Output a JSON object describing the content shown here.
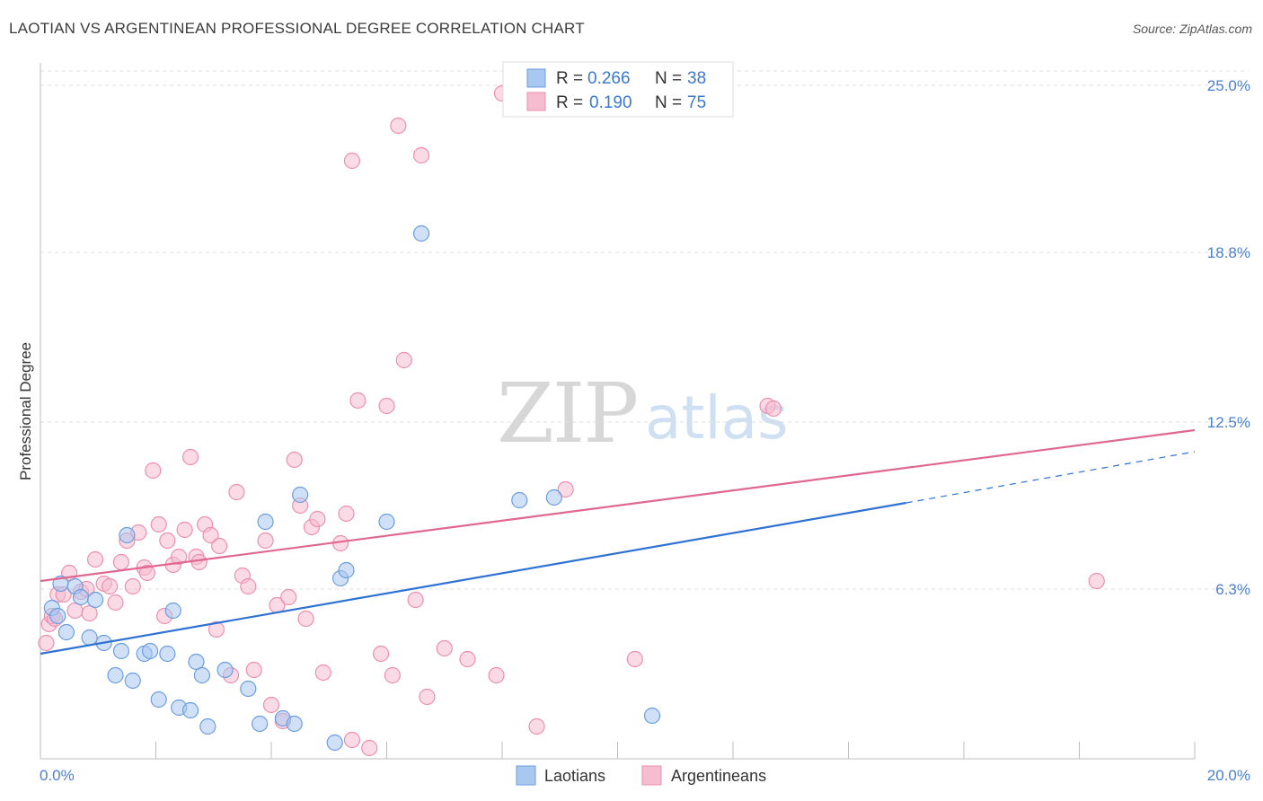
{
  "title": "LAOTIAN VS ARGENTINEAN PROFESSIONAL DEGREE CORRELATION CHART",
  "source": "Source: ZipAtlas.com",
  "watermark": {
    "zip": "ZIP",
    "atlas": "atlas"
  },
  "colors": {
    "laotians_fill": "#a9c8f0",
    "laotians_stroke": "#6b9de0",
    "laotians_line": "#2f72d4",
    "argentineans_fill": "#f6bcd0",
    "argentineans_stroke": "#ec8fb0",
    "argentineans_line": "#e0678f",
    "tick_label": "#4a7fd0",
    "grid": "#dddddd"
  },
  "legend": {
    "r_label": "R =",
    "n_label": "N =",
    "laotians": {
      "r": "0.266",
      "n": "38"
    },
    "argentineans": {
      "r": "0.190",
      "n": "75"
    }
  },
  "chart_data": {
    "type": "scatter",
    "title": "LAOTIAN VS ARGENTINEAN PROFESSIONAL DEGREE CORRELATION CHART",
    "xlabel": "",
    "ylabel": "Professional Degree",
    "xlim": [
      0,
      20
    ],
    "ylim": [
      0,
      25.8
    ],
    "x_tick_labels": {
      "min": "0.0%",
      "max": "20.0%"
    },
    "y_ticks": [
      {
        "value": 6.3,
        "label": "6.3%"
      },
      {
        "value": 12.5,
        "label": "12.5%"
      },
      {
        "value": 18.8,
        "label": "18.8%"
      },
      {
        "value": 25.0,
        "label": "25.0%"
      }
    ],
    "series": [
      {
        "name": "Laotians",
        "trend": {
          "x0": 0,
          "y0": 3.9,
          "x1": 15.0,
          "y1": 9.5,
          "dash_to_x": 20,
          "dash_to_y": 11.4
        },
        "points": [
          [
            0.2,
            5.6
          ],
          [
            0.3,
            5.3
          ],
          [
            0.35,
            6.5
          ],
          [
            0.45,
            4.7
          ],
          [
            0.6,
            6.4
          ],
          [
            0.7,
            6.0
          ],
          [
            0.85,
            4.5
          ],
          [
            0.95,
            5.9
          ],
          [
            1.1,
            4.3
          ],
          [
            1.3,
            3.1
          ],
          [
            1.4,
            4.0
          ],
          [
            1.5,
            8.3
          ],
          [
            1.6,
            2.9
          ],
          [
            1.8,
            3.9
          ],
          [
            1.9,
            4.0
          ],
          [
            2.05,
            2.2
          ],
          [
            2.2,
            3.9
          ],
          [
            2.3,
            5.5
          ],
          [
            2.4,
            1.9
          ],
          [
            2.6,
            1.8
          ],
          [
            2.7,
            3.6
          ],
          [
            2.8,
            3.1
          ],
          [
            2.9,
            1.2
          ],
          [
            3.2,
            3.3
          ],
          [
            3.6,
            2.6
          ],
          [
            3.8,
            1.3
          ],
          [
            3.9,
            8.8
          ],
          [
            4.2,
            1.5
          ],
          [
            4.4,
            1.3
          ],
          [
            4.5,
            9.8
          ],
          [
            5.1,
            0.6
          ],
          [
            5.2,
            6.7
          ],
          [
            5.3,
            7.0
          ],
          [
            6.0,
            8.8
          ],
          [
            6.6,
            19.5
          ],
          [
            8.3,
            9.6
          ],
          [
            8.9,
            9.7
          ],
          [
            10.6,
            1.6
          ]
        ]
      },
      {
        "name": "Argentineans",
        "trend": {
          "x0": 0,
          "y0": 6.6,
          "x1": 20,
          "y1": 12.2
        },
        "points": [
          [
            0.1,
            4.3
          ],
          [
            0.15,
            5.0
          ],
          [
            0.2,
            5.3
          ],
          [
            0.25,
            5.2
          ],
          [
            0.3,
            6.1
          ],
          [
            0.4,
            6.1
          ],
          [
            0.5,
            6.9
          ],
          [
            0.6,
            5.5
          ],
          [
            0.7,
            6.2
          ],
          [
            0.8,
            6.3
          ],
          [
            0.85,
            5.4
          ],
          [
            0.95,
            7.4
          ],
          [
            1.1,
            6.5
          ],
          [
            1.2,
            6.4
          ],
          [
            1.3,
            5.8
          ],
          [
            1.4,
            7.3
          ],
          [
            1.5,
            8.1
          ],
          [
            1.6,
            6.4
          ],
          [
            1.7,
            8.4
          ],
          [
            1.8,
            7.1
          ],
          [
            1.85,
            6.9
          ],
          [
            1.95,
            10.7
          ],
          [
            2.05,
            8.7
          ],
          [
            2.15,
            5.3
          ],
          [
            2.2,
            8.1
          ],
          [
            2.3,
            7.2
          ],
          [
            2.4,
            7.5
          ],
          [
            2.5,
            8.5
          ],
          [
            2.6,
            11.2
          ],
          [
            2.7,
            7.5
          ],
          [
            2.75,
            7.3
          ],
          [
            2.85,
            8.7
          ],
          [
            2.95,
            8.3
          ],
          [
            3.05,
            4.8
          ],
          [
            3.1,
            7.9
          ],
          [
            3.3,
            3.1
          ],
          [
            3.4,
            9.9
          ],
          [
            3.5,
            6.8
          ],
          [
            3.6,
            6.4
          ],
          [
            3.7,
            3.3
          ],
          [
            3.9,
            8.1
          ],
          [
            4.0,
            2.0
          ],
          [
            4.1,
            5.7
          ],
          [
            4.2,
            1.4
          ],
          [
            4.3,
            6.0
          ],
          [
            4.4,
            11.1
          ],
          [
            4.5,
            9.4
          ],
          [
            4.6,
            5.2
          ],
          [
            4.7,
            8.6
          ],
          [
            4.8,
            8.9
          ],
          [
            4.9,
            3.2
          ],
          [
            5.2,
            8.0
          ],
          [
            5.3,
            9.1
          ],
          [
            5.4,
            0.7
          ],
          [
            5.5,
            13.3
          ],
          [
            5.7,
            0.4
          ],
          [
            5.9,
            3.9
          ],
          [
            6.0,
            13.1
          ],
          [
            6.1,
            3.1
          ],
          [
            6.2,
            23.5
          ],
          [
            6.3,
            14.8
          ],
          [
            6.5,
            5.9
          ],
          [
            6.7,
            2.3
          ],
          [
            7.0,
            4.1
          ],
          [
            7.4,
            3.7
          ],
          [
            7.9,
            3.1
          ],
          [
            8.0,
            24.7
          ],
          [
            8.6,
            1.2
          ],
          [
            9.1,
            10.0
          ],
          [
            10.3,
            3.7
          ],
          [
            12.6,
            13.1
          ],
          [
            12.7,
            13.0
          ],
          [
            18.3,
            6.6
          ],
          [
            5.4,
            22.2
          ],
          [
            6.6,
            22.4
          ]
        ]
      }
    ]
  },
  "bottom_legend": [
    {
      "name": "Laotians"
    },
    {
      "name": "Argentineans"
    }
  ]
}
